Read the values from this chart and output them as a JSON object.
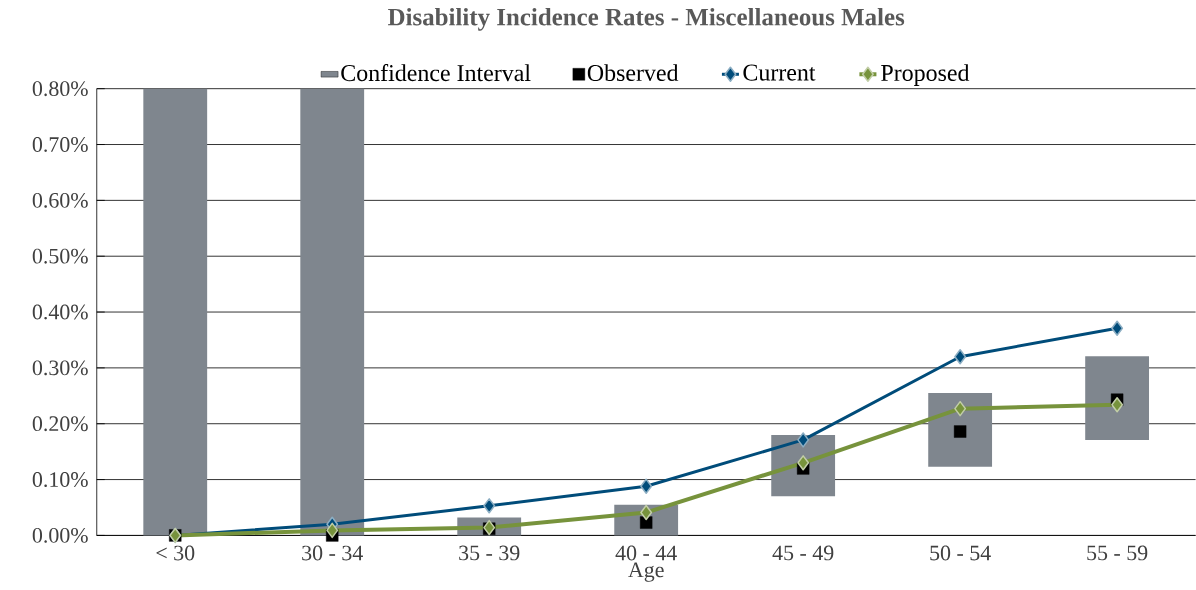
{
  "chart_data": {
    "type": "line",
    "title": "Disability Incidence Rates - Miscellaneous Males",
    "xlabel": "Age",
    "categories": [
      "< 30",
      "30 - 34",
      "35 - 39",
      "40 - 44",
      "45 - 49",
      "50 - 54",
      "55 - 59"
    ],
    "series": [
      {
        "name": "Confidence Interval",
        "type": "bar",
        "color": "#7f868e",
        "base": [
          0,
          0,
          0,
          0,
          0.07,
          0.123,
          0.171
        ],
        "values": [
          0.8,
          0.8,
          0.032,
          0.055,
          0.11,
          0.132,
          0.15
        ]
      },
      {
        "name": "Observed",
        "type": "scatter",
        "color": "#000000",
        "marker": "square",
        "values": [
          0.0,
          0.0,
          0.012,
          0.023,
          0.12,
          0.186,
          0.243
        ]
      },
      {
        "name": "Current",
        "color": "#004c7a",
        "marker": "diamond",
        "values": [
          0.0,
          0.02,
          0.053,
          0.088,
          0.171,
          0.32,
          0.371
        ]
      },
      {
        "name": "Proposed",
        "color": "#77933c",
        "marker": "diamond",
        "values": [
          0.0,
          0.009,
          0.014,
          0.041,
          0.13,
          0.227,
          0.234
        ]
      }
    ],
    "ylim": [
      0,
      0.8
    ],
    "yticks": [
      {
        "value": 0,
        "label": "0.00%"
      },
      {
        "value": 0.1,
        "label": "0.10%"
      },
      {
        "value": 0.2,
        "label": "0.20%"
      },
      {
        "value": 0.3,
        "label": "0.30%"
      },
      {
        "value": 0.4,
        "label": "0.40%"
      },
      {
        "value": 0.5,
        "label": "0.50%"
      },
      {
        "value": 0.6,
        "label": "0.60%"
      },
      {
        "value": 0.7,
        "label": "0.70%"
      },
      {
        "value": 0.8,
        "label": "0.80%"
      }
    ],
    "grid": "y",
    "legend": "top"
  }
}
